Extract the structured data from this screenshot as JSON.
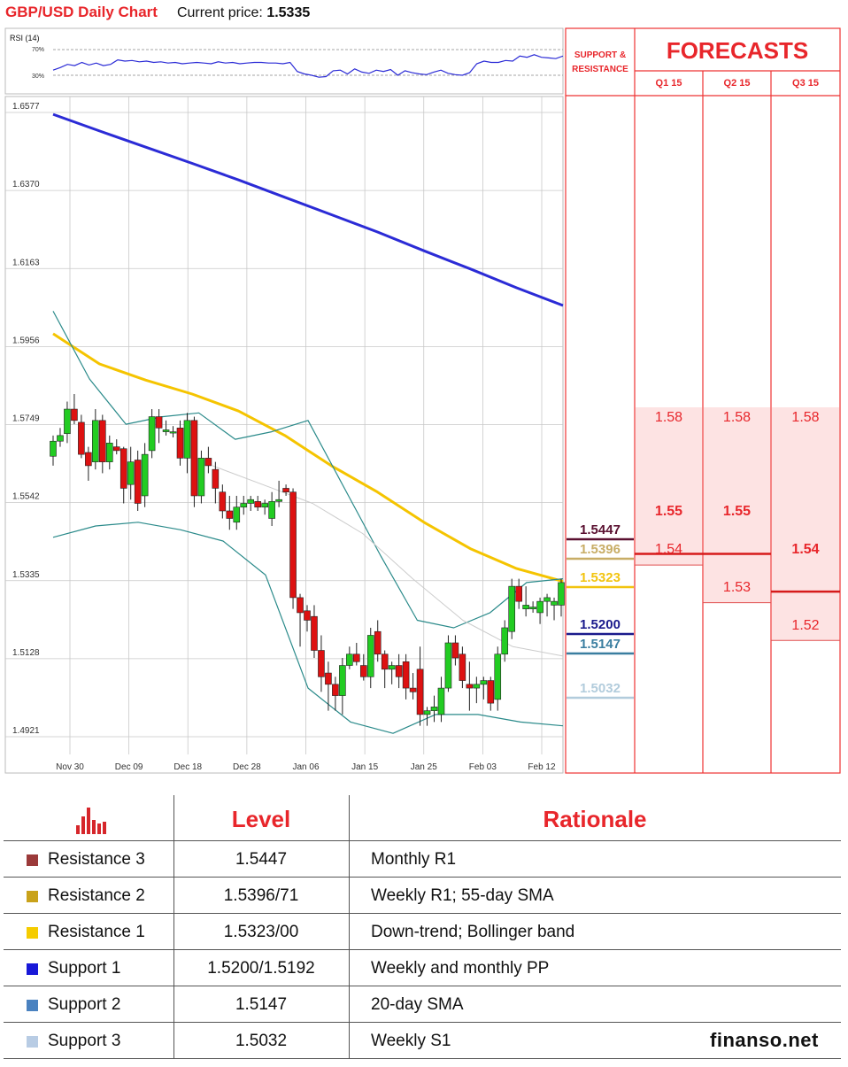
{
  "header": {
    "title": "GBP/USD Daily Chart",
    "price_label": "Current price:",
    "price_value": "1.5335"
  },
  "rsi": {
    "label": "RSI (14)",
    "level_high": "70%",
    "level_low": "30%",
    "values": [
      38,
      42,
      47,
      45,
      50,
      46,
      49,
      45,
      47,
      54,
      52,
      53,
      51,
      52,
      50,
      51,
      49,
      50,
      48,
      49,
      50,
      49,
      48,
      51,
      49,
      50,
      48,
      49,
      50,
      50,
      49,
      49,
      48,
      50,
      36,
      32,
      30,
      27,
      28,
      37,
      38,
      32,
      40,
      35,
      33,
      38,
      36,
      39,
      30,
      37,
      34,
      32,
      31,
      35,
      38,
      33,
      31,
      30,
      34,
      48,
      52,
      50,
      50,
      53,
      52,
      60,
      58,
      62,
      58,
      57,
      56,
      60
    ]
  },
  "chart_data": {
    "type": "candlestick",
    "y_ticks": [
      "1.6577",
      "1.6370",
      "1.6163",
      "1.5956",
      "1.5749",
      "1.5542",
      "1.5335",
      "1.5128",
      "1.4921"
    ],
    "x_ticks": [
      "Nov 30",
      "Dec 09",
      "Dec 18",
      "Dec 28",
      "Jan 06",
      "Jan 15",
      "Jan 25",
      "Feb 03",
      "Feb 12"
    ],
    "ylim": [
      1.4921,
      1.6577
    ],
    "candles": [
      [
        1.5665,
        1.572,
        1.564,
        1.5705
      ],
      [
        1.5705,
        1.574,
        1.569,
        1.572
      ],
      [
        1.5725,
        1.581,
        1.57,
        1.579
      ],
      [
        1.579,
        1.583,
        1.575,
        1.576
      ],
      [
        1.5755,
        1.5775,
        1.566,
        1.567
      ],
      [
        1.5675,
        1.569,
        1.56,
        1.564
      ],
      [
        1.565,
        1.579,
        1.563,
        1.576
      ],
      [
        1.576,
        1.5775,
        1.562,
        1.565
      ],
      [
        1.565,
        1.572,
        1.563,
        1.57
      ],
      [
        1.569,
        1.571,
        1.567,
        1.568
      ],
      [
        1.5685,
        1.569,
        1.554,
        1.558
      ],
      [
        1.559,
        1.569,
        1.555,
        1.565
      ],
      [
        1.5655,
        1.568,
        1.552,
        1.554
      ],
      [
        1.556,
        1.57,
        1.553,
        1.567
      ],
      [
        1.568,
        1.579,
        1.566,
        1.577
      ],
      [
        1.577,
        1.579,
        1.57,
        1.574
      ],
      [
        1.573,
        1.576,
        1.572,
        1.5735
      ],
      [
        1.573,
        1.5745,
        1.5715,
        1.573
      ],
      [
        1.574,
        1.576,
        1.564,
        1.566
      ],
      [
        1.566,
        1.578,
        1.562,
        1.576
      ],
      [
        1.576,
        1.577,
        1.553,
        1.556
      ],
      [
        1.556,
        1.568,
        1.554,
        1.566
      ],
      [
        1.566,
        1.569,
        1.562,
        1.564
      ],
      [
        1.563,
        1.565,
        1.554,
        1.558
      ],
      [
        1.557,
        1.559,
        1.55,
        1.552
      ],
      [
        1.552,
        1.556,
        1.547,
        1.55
      ],
      [
        1.549,
        1.556,
        1.547,
        1.553
      ],
      [
        1.553,
        1.556,
        1.551,
        1.554
      ],
      [
        1.554,
        1.556,
        1.552,
        1.555
      ],
      [
        1.5545,
        1.556,
        1.552,
        1.553
      ],
      [
        1.553,
        1.555,
        1.551,
        1.554
      ],
      [
        1.55,
        1.557,
        1.548,
        1.5545
      ],
      [
        1.5545,
        1.56,
        1.553,
        1.555
      ],
      [
        1.558,
        1.559,
        1.556,
        1.557
      ],
      [
        1.557,
        1.558,
        1.526,
        1.529
      ],
      [
        1.529,
        1.53,
        1.516,
        1.525
      ],
      [
        1.5255,
        1.527,
        1.52,
        1.523
      ],
      [
        1.524,
        1.527,
        1.513,
        1.515
      ],
      [
        1.515,
        1.519,
        1.504,
        1.508
      ],
      [
        1.509,
        1.512,
        1.499,
        1.506
      ],
      [
        1.506,
        1.508,
        1.499,
        1.503
      ],
      [
        1.503,
        1.513,
        1.498,
        1.511
      ],
      [
        1.511,
        1.516,
        1.51,
        1.514
      ],
      [
        1.514,
        1.517,
        1.511,
        1.512
      ],
      [
        1.511,
        1.514,
        1.507,
        1.508
      ],
      [
        1.508,
        1.521,
        1.505,
        1.519
      ],
      [
        1.52,
        1.523,
        1.512,
        1.514
      ],
      [
        1.514,
        1.515,
        1.505,
        1.51
      ],
      [
        1.51,
        1.512,
        1.506,
        1.511
      ],
      [
        1.511,
        1.514,
        1.505,
        1.508
      ],
      [
        1.512,
        1.514,
        1.502,
        1.505
      ],
      [
        1.505,
        1.509,
        1.502,
        1.504
      ],
      [
        1.51,
        1.516,
        1.495,
        1.498
      ],
      [
        1.498,
        1.5,
        1.495,
        1.499
      ],
      [
        1.499,
        1.503,
        1.496,
        1.5
      ],
      [
        1.498,
        1.508,
        1.496,
        1.505
      ],
      [
        1.505,
        1.519,
        1.504,
        1.517
      ],
      [
        1.517,
        1.519,
        1.511,
        1.513
      ],
      [
        1.514,
        1.516,
        1.505,
        1.507
      ],
      [
        1.506,
        1.512,
        1.499,
        1.505
      ],
      [
        1.505,
        1.508,
        1.501,
        1.506
      ],
      [
        1.506,
        1.508,
        1.502,
        1.507
      ],
      [
        1.507,
        1.508,
        1.499,
        1.501
      ],
      [
        1.502,
        1.516,
        1.499,
        1.514
      ],
      [
        1.514,
        1.523,
        1.512,
        1.521
      ],
      [
        1.52,
        1.534,
        1.518,
        1.532
      ],
      [
        1.532,
        1.534,
        1.526,
        1.528
      ],
      [
        1.526,
        1.532,
        1.524,
        1.527
      ],
      [
        1.526,
        1.528,
        1.525,
        1.5265
      ],
      [
        1.525,
        1.529,
        1.522,
        1.528
      ],
      [
        1.528,
        1.53,
        1.524,
        1.529
      ],
      [
        1.527,
        1.529,
        1.523,
        1.528
      ],
      [
        1.527,
        1.534,
        1.524,
        1.533
      ]
    ],
    "series": [
      {
        "role": "sma200",
        "color": "#2b2bd6",
        "values": [
          1.6572,
          1.6528,
          1.6485,
          1.6442,
          1.6398,
          1.6352,
          1.6306,
          1.626,
          1.621,
          1.6162,
          1.6112,
          1.6065
        ]
      },
      {
        "role": "sma55",
        "color": "#f5c400",
        "values": [
          1.599,
          1.591,
          1.5867,
          1.583,
          1.5785,
          1.572,
          1.564,
          1.557,
          1.549,
          1.542,
          1.5367,
          1.5333
        ]
      },
      {
        "role": "bb_upper",
        "color": "#2a8a8a",
        "values": [
          1.605,
          1.587,
          1.575,
          1.577,
          1.578,
          1.571,
          1.573,
          1.576,
          1.558,
          1.54,
          1.523,
          1.521,
          1.525,
          1.533,
          1.534
        ]
      },
      {
        "role": "bb_lower",
        "color": "#2a8a8a",
        "values": [
          1.545,
          1.548,
          1.549,
          1.547,
          1.544,
          1.535,
          1.505,
          1.496,
          1.493,
          1.498,
          1.498,
          1.496,
          1.495
        ]
      },
      {
        "role": "sma20",
        "color": "#cccccc",
        "values": [
          1.564,
          1.559,
          1.554,
          1.546,
          1.534,
          1.523,
          1.516,
          1.5135
        ]
      }
    ],
    "levels": [
      {
        "label": "1.5447",
        "value": 1.5447,
        "color": "#5a1030"
      },
      {
        "label": "1.5396",
        "value": 1.5396,
        "color": "#c8ad66"
      },
      {
        "label": "1.5323",
        "value": 1.5323,
        "color": "#f2c40f"
      },
      {
        "label": "1.5200",
        "value": 1.52,
        "color": "#1a1a8c"
      },
      {
        "label": "1.5147",
        "value": 1.5147,
        "color": "#3a7ea0"
      },
      {
        "label": "1.5032",
        "value": 1.5032,
        "color": "#b2ccdc"
      }
    ]
  },
  "forecast": {
    "sr_title_1": "SUPPORT &",
    "sr_title_2": "RESISTANCE",
    "title": "FORECASTS",
    "columns": [
      "Q1 15",
      "Q2 15",
      "Q3 15"
    ],
    "q1": {
      "high": "1.58",
      "main": "1.55",
      "low": "1.54"
    },
    "q2": {
      "high": "1.58",
      "main": "1.55",
      "low": "1.53"
    },
    "q3": {
      "high": "1.58",
      "main": "1.54",
      "low": "1.52"
    }
  },
  "table": {
    "header_level": "Level",
    "header_rationale": "Rationale",
    "rows": [
      {
        "name": "Resistance 3",
        "level": "1.5447",
        "rationale": "Monthly R1",
        "color": "#9b3a3a"
      },
      {
        "name": "Resistance 2",
        "level": "1.5396/71",
        "rationale": "Weekly R1; 55-day SMA",
        "color": "#c9a21a"
      },
      {
        "name": "Resistance 1",
        "level": "1.5323/00",
        "rationale": "Down-trend; Bollinger band",
        "color": "#f5cc00"
      },
      {
        "name": "Support 1",
        "level": "1.5200/1.5192",
        "rationale": "Weekly and monthly PP",
        "color": "#1818d8"
      },
      {
        "name": "Support 2",
        "level": "1.5147",
        "rationale": "20-day SMA",
        "color": "#4a82c0"
      },
      {
        "name": "Support 3",
        "level": "1.5032",
        "rationale": "Weekly S1",
        "color": "#b8cce4"
      }
    ]
  },
  "brand": "finanso.net"
}
